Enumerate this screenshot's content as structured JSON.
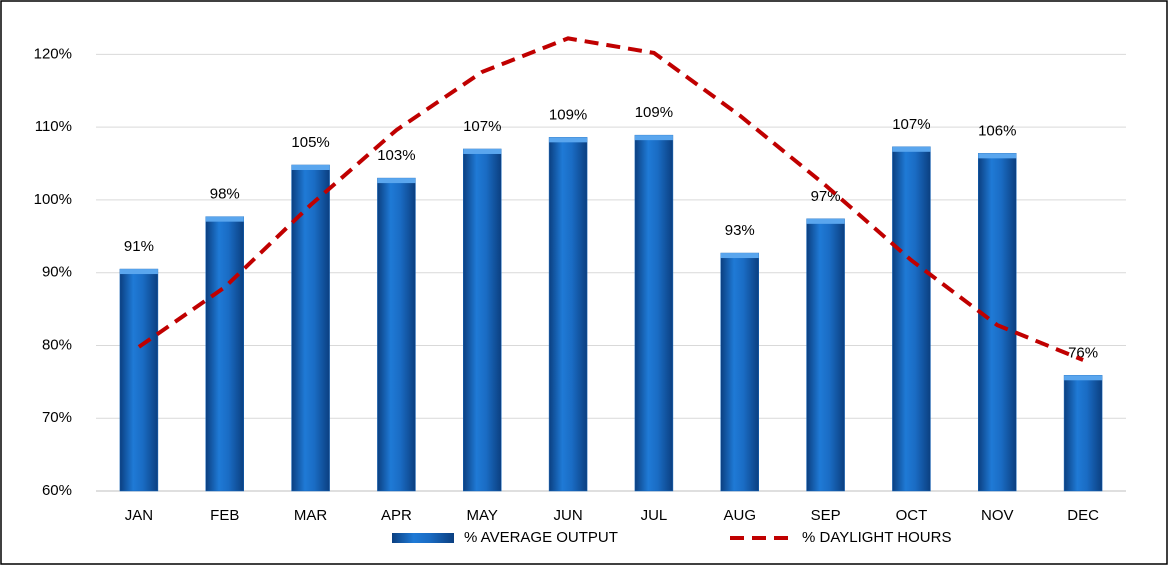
{
  "chart_data": {
    "type": "bar_line",
    "categories": [
      "JAN",
      "FEB",
      "MAR",
      "APR",
      "MAY",
      "JUN",
      "JUL",
      "AUG",
      "SEP",
      "OCT",
      "NOV",
      "DEC"
    ],
    "series": [
      {
        "name": "% AVERAGE OUTPUT",
        "type": "bar",
        "color": "#1565b8",
        "values": [
          90.5,
          97.7,
          104.8,
          103,
          107,
          108.6,
          108.9,
          92.7,
          97.4,
          107.3,
          106.4,
          75.9
        ],
        "value_labels": [
          "91%",
          "98%",
          "105%",
          "103%",
          "107%",
          "109%",
          "109%",
          "93%",
          "97%",
          "107%",
          "106%",
          "76%"
        ]
      },
      {
        "name": "% DAYLIGHT HOURS",
        "type": "line",
        "color": "#c00000",
        "values": [
          79.8,
          88,
          99.3,
          109.6,
          117.6,
          122.2,
          120.2,
          111.6,
          102,
          91.7,
          82.8,
          78
        ]
      }
    ],
    "ylim": [
      60,
      125
    ],
    "yticks": [
      {
        "value": 60,
        "label": "60%"
      },
      {
        "value": 70,
        "label": "70%"
      },
      {
        "value": 80,
        "label": "80%"
      },
      {
        "value": 90,
        "label": "90%"
      },
      {
        "value": 100,
        "label": "100%"
      },
      {
        "value": 110,
        "label": "110%"
      },
      {
        "value": 120,
        "label": "120%"
      }
    ],
    "grid": true,
    "legend": "bottom"
  }
}
